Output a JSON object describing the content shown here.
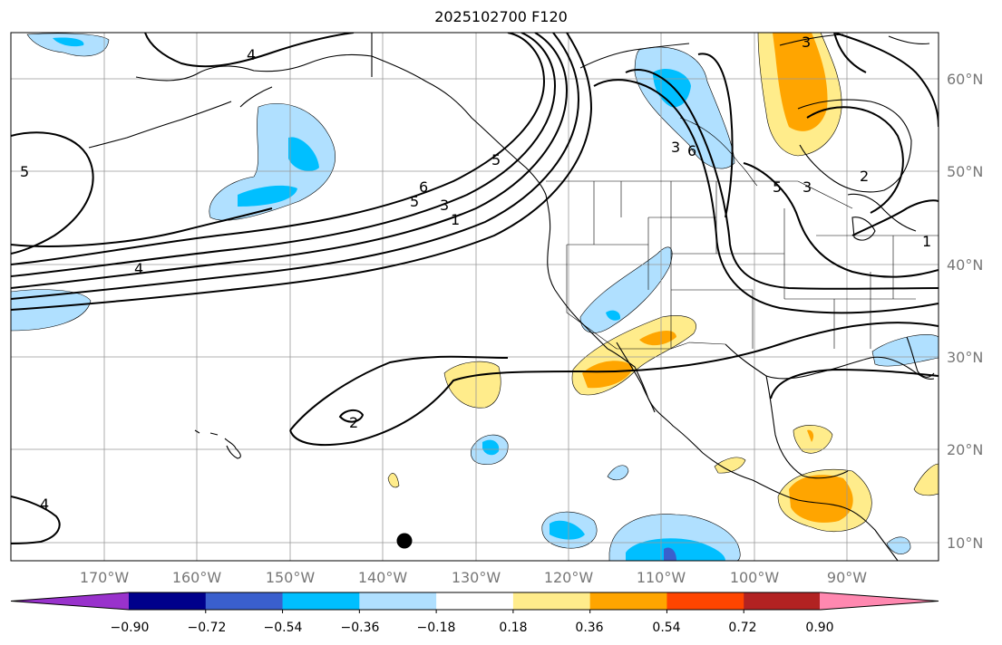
{
  "title": "2025102700 F120",
  "map": {
    "lat_ticks": [
      "60°N",
      "50°N",
      "40°N",
      "30°N",
      "20°N",
      "10°N"
    ],
    "lon_ticks": [
      "170°W",
      "160°W",
      "150°W",
      "140°W",
      "130°W",
      "120°W",
      "110°W",
      "100°W",
      "90°W"
    ],
    "contour_labels": [
      "4",
      "5",
      "6",
      "5",
      "3",
      "1",
      "4",
      "2",
      "3",
      "6",
      "5",
      "3",
      "2",
      "1",
      "4",
      "3",
      "5"
    ],
    "colors": {
      "coast": "#000000",
      "grid": "#999999",
      "contour": "#000000"
    }
  },
  "colorbar": {
    "colors": [
      "#9932cc",
      "#00008b",
      "#3a5fcd",
      "#00bfff",
      "#b0e0ff",
      "#ffffff",
      "#ffec8b",
      "#ffa500",
      "#ff4500",
      "#b22222",
      "#ff88b0"
    ],
    "tick_labels": [
      "−0.90",
      "−0.72",
      "−0.54",
      "−0.36",
      "−0.18",
      "0.18",
      "0.36",
      "0.54",
      "0.72",
      "0.90"
    ]
  }
}
